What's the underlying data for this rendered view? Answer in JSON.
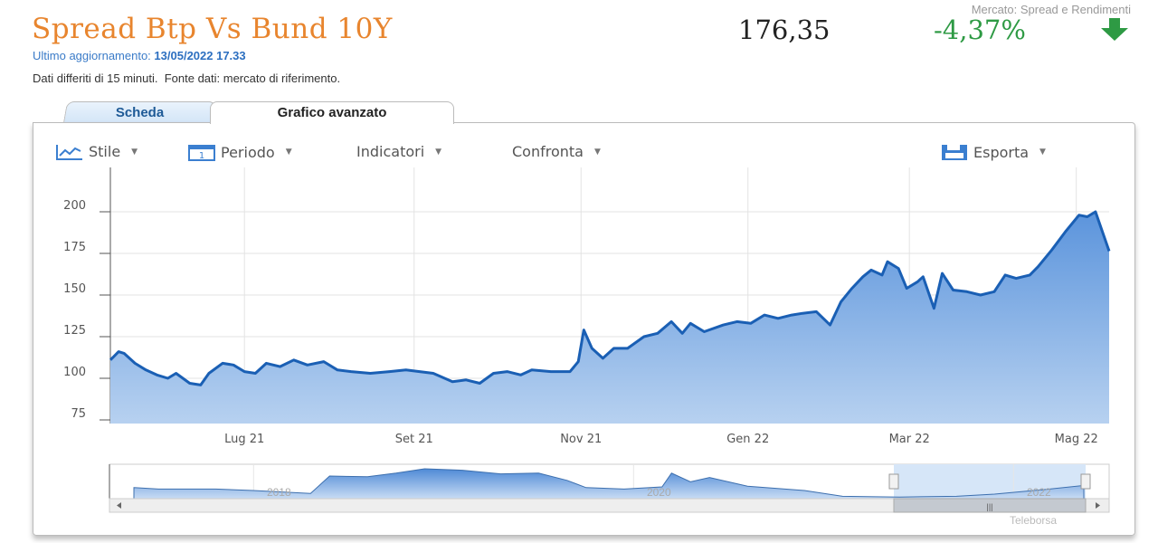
{
  "header": {
    "title": "Spread Btp Vs Bund 10Y",
    "update_label": "Ultimo aggiornamento:",
    "update_value": "13/05/2022 17.33",
    "note": "Dati differiti di 15 minuti.  Fonte dati: mercato di riferimento.",
    "market": "Mercato: Spread e Rendimenti",
    "price": "176,35",
    "change": "-4,37%",
    "change_direction": "down",
    "colors": {
      "title": "#e8852e",
      "change": "#2e9a44",
      "line": "#1a5fb4"
    }
  },
  "tabs": [
    {
      "label": "Scheda"
    },
    {
      "label": "Grafico avanzato",
      "active": true
    }
  ],
  "toolbar": {
    "style": "Stile",
    "period": "Periodo",
    "indicators": "Indicatori",
    "compare": "Confronta",
    "export": "Esporta"
  },
  "credit": "Teleborsa",
  "chart_data": {
    "type": "area",
    "ylim": [
      75,
      210
    ],
    "yticks": [
      75,
      100,
      125,
      150,
      175,
      200
    ],
    "xticks": [
      {
        "label": "Lug 21",
        "date": "2021-07-01"
      },
      {
        "label": "Set 21",
        "date": "2021-09-01"
      },
      {
        "label": "Nov 21",
        "date": "2021-11-01"
      },
      {
        "label": "Gen 22",
        "date": "2022-01-01"
      },
      {
        "label": "Mar 22",
        "date": "2022-03-01"
      },
      {
        "label": "Mag 22",
        "date": "2022-05-01"
      }
    ],
    "grid": true,
    "points": [
      [
        "2021-05-13",
        111
      ],
      [
        "2021-05-16",
        116
      ],
      [
        "2021-05-18",
        115
      ],
      [
        "2021-05-22",
        109
      ],
      [
        "2021-05-26",
        105
      ],
      [
        "2021-05-30",
        102
      ],
      [
        "2021-06-03",
        100
      ],
      [
        "2021-06-06",
        103
      ],
      [
        "2021-06-11",
        97
      ],
      [
        "2021-06-15",
        96
      ],
      [
        "2021-06-18",
        103
      ],
      [
        "2021-06-23",
        109
      ],
      [
        "2021-06-27",
        108
      ],
      [
        "2021-07-01",
        104
      ],
      [
        "2021-07-05",
        103
      ],
      [
        "2021-07-09",
        109
      ],
      [
        "2021-07-14",
        107
      ],
      [
        "2021-07-19",
        111
      ],
      [
        "2021-07-24",
        108
      ],
      [
        "2021-07-30",
        110
      ],
      [
        "2021-08-04",
        105
      ],
      [
        "2021-08-09",
        104
      ],
      [
        "2021-08-16",
        103
      ],
      [
        "2021-08-23",
        104
      ],
      [
        "2021-08-29",
        105
      ],
      [
        "2021-09-03",
        104
      ],
      [
        "2021-09-08",
        103
      ],
      [
        "2021-09-15",
        98
      ],
      [
        "2021-09-20",
        99
      ],
      [
        "2021-09-25",
        97
      ],
      [
        "2021-09-30",
        103
      ],
      [
        "2021-10-05",
        104
      ],
      [
        "2021-10-10",
        102
      ],
      [
        "2021-10-14",
        105
      ],
      [
        "2021-10-21",
        104
      ],
      [
        "2021-10-28",
        104
      ],
      [
        "2021-10-31",
        110
      ],
      [
        "2021-11-02",
        129
      ],
      [
        "2021-11-05",
        118
      ],
      [
        "2021-11-09",
        112
      ],
      [
        "2021-11-13",
        118
      ],
      [
        "2021-11-18",
        118
      ],
      [
        "2021-11-24",
        125
      ],
      [
        "2021-11-29",
        127
      ],
      [
        "2021-12-04",
        134
      ],
      [
        "2021-12-08",
        127
      ],
      [
        "2021-12-11",
        133
      ],
      [
        "2021-12-16",
        128
      ],
      [
        "2021-12-23",
        132
      ],
      [
        "2021-12-28",
        134
      ],
      [
        "2022-01-02",
        133
      ],
      [
        "2022-01-07",
        138
      ],
      [
        "2022-01-12",
        136
      ],
      [
        "2022-01-17",
        138
      ],
      [
        "2022-01-21",
        139
      ],
      [
        "2022-01-26",
        140
      ],
      [
        "2022-01-31",
        132
      ],
      [
        "2022-02-04",
        146
      ],
      [
        "2022-02-08",
        154
      ],
      [
        "2022-02-12",
        161
      ],
      [
        "2022-02-15",
        165
      ],
      [
        "2022-02-19",
        162
      ],
      [
        "2022-02-21",
        170
      ],
      [
        "2022-02-25",
        166
      ],
      [
        "2022-02-28",
        154
      ],
      [
        "2022-03-04",
        158
      ],
      [
        "2022-03-06",
        161
      ],
      [
        "2022-03-10",
        142
      ],
      [
        "2022-03-13",
        163
      ],
      [
        "2022-03-17",
        153
      ],
      [
        "2022-03-22",
        152
      ],
      [
        "2022-03-27",
        150
      ],
      [
        "2022-04-01",
        152
      ],
      [
        "2022-04-05",
        162
      ],
      [
        "2022-04-09",
        160
      ],
      [
        "2022-04-14",
        162
      ],
      [
        "2022-04-17",
        167
      ],
      [
        "2022-04-22",
        177
      ],
      [
        "2022-04-27",
        188
      ],
      [
        "2022-05-02",
        198
      ],
      [
        "2022-05-05",
        197
      ],
      [
        "2022-05-08",
        200
      ],
      [
        "2022-05-13",
        176.35
      ]
    ],
    "navigator": {
      "xticks": [
        "2018",
        "2020",
        "2022"
      ],
      "points": [
        [
          2017.37,
          170
        ],
        [
          2017.5,
          160
        ],
        [
          2017.8,
          160
        ],
        [
          2018.0,
          150
        ],
        [
          2018.3,
          130
        ],
        [
          2018.4,
          250
        ],
        [
          2018.6,
          245
        ],
        [
          2018.75,
          270
        ],
        [
          2018.9,
          300
        ],
        [
          2019.1,
          290
        ],
        [
          2019.3,
          265
        ],
        [
          2019.5,
          270
        ],
        [
          2019.65,
          220
        ],
        [
          2019.75,
          170
        ],
        [
          2019.95,
          160
        ],
        [
          2020.15,
          175
        ],
        [
          2020.2,
          270
        ],
        [
          2020.3,
          210
        ],
        [
          2020.4,
          240
        ],
        [
          2020.6,
          180
        ],
        [
          2020.9,
          150
        ],
        [
          2021.1,
          110
        ],
        [
          2021.4,
          105
        ],
        [
          2021.7,
          110
        ],
        [
          2021.9,
          125
        ],
        [
          2022.15,
          155
        ],
        [
          2022.37,
          185
        ]
      ],
      "selection": [
        "2021-05-13",
        "2022-05-13"
      ]
    }
  }
}
